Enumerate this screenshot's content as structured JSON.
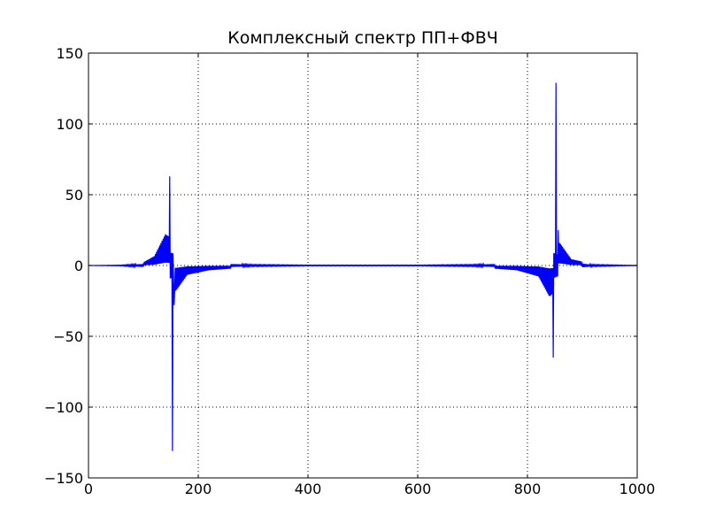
{
  "chart_data": {
    "type": "line",
    "title": "Комплексный спектр ПП+ФВЧ",
    "xlabel": "",
    "ylabel": "",
    "xlim": [
      0,
      1000
    ],
    "ylim": [
      -150,
      150
    ],
    "xticks": [
      0,
      200,
      400,
      600,
      800,
      1000
    ],
    "xtick_labels": [
      "0",
      "200",
      "400",
      "600",
      "800",
      "1000"
    ],
    "yticks": [
      -150,
      -100,
      -50,
      0,
      50,
      100,
      150
    ],
    "ytick_labels": [
      "−150",
      "−100",
      "−50",
      "0",
      "50",
      "100",
      "150"
    ],
    "grid": true,
    "grid_style": "dotted",
    "line_color": "#0000ff",
    "series": [
      {
        "description_of_shape": "alternating-sign oscillation whose envelope decays away from two sharp spectral spikes",
        "baseline": 0,
        "features": [
          {
            "x": 148,
            "y": 63
          },
          {
            "x": 153,
            "y": -131
          },
          {
            "x": 156,
            "y": -28
          },
          {
            "x": 847,
            "y": -65
          },
          {
            "x": 852,
            "y": 129
          },
          {
            "x": 856,
            "y": 25
          }
        ],
        "envelope_samples": [
          {
            "x": 60,
            "amp": 0.5
          },
          {
            "x": 100,
            "amp": 2
          },
          {
            "x": 120,
            "amp": 6
          },
          {
            "x": 140,
            "amp": 20
          },
          {
            "x": 160,
            "amp": 16
          },
          {
            "x": 180,
            "amp": 6
          },
          {
            "x": 220,
            "amp": 3
          },
          {
            "x": 300,
            "amp": 1
          },
          {
            "x": 400,
            "amp": 0.5
          },
          {
            "x": 600,
            "amp": 0.5
          },
          {
            "x": 700,
            "amp": 1
          },
          {
            "x": 780,
            "amp": 3
          },
          {
            "x": 820,
            "amp": 7
          },
          {
            "x": 840,
            "amp": 20
          },
          {
            "x": 860,
            "amp": 14
          },
          {
            "x": 880,
            "amp": 4
          },
          {
            "x": 920,
            "amp": 1
          },
          {
            "x": 1000,
            "amp": 0.2
          }
        ]
      }
    ]
  }
}
